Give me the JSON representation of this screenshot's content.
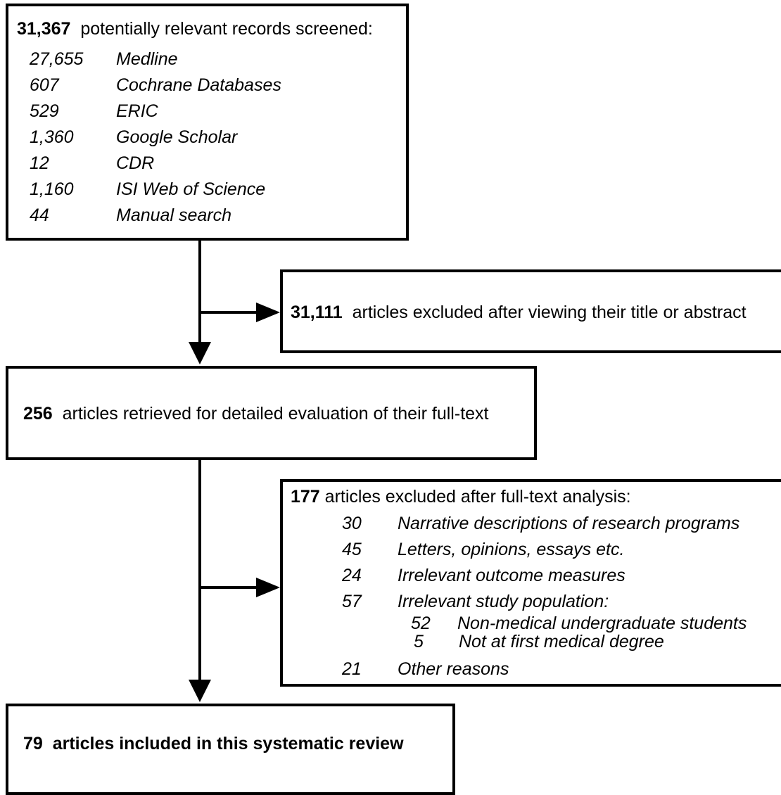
{
  "screened": {
    "count": "31,367",
    "label": "potentially relevant records screened:",
    "sources": [
      {
        "n": "27,655",
        "name": "Medline"
      },
      {
        "n": "607",
        "name": "Cochrane Databases"
      },
      {
        "n": "529",
        "name": "ERIC"
      },
      {
        "n": "1,360",
        "name": "Google Scholar"
      },
      {
        "n": "12",
        "name": "CDR"
      },
      {
        "n": "1,160",
        "name": "ISI Web of Science"
      },
      {
        "n": "44",
        "name": "Manual search"
      }
    ]
  },
  "excluded_title": {
    "count": "31,111",
    "label": "articles excluded after viewing their title or abstract"
  },
  "retrieved": {
    "count": "256",
    "label": "articles retrieved for detailed evaluation of their full-text"
  },
  "excluded_fulltext": {
    "count": "177",
    "label": "articles excluded after full-text analysis:",
    "reasons": [
      {
        "n": "30",
        "name": "Narrative descriptions of research programs"
      },
      {
        "n": "45",
        "name": "Letters, opinions, essays etc."
      },
      {
        "n": "24",
        "name": "Irrelevant outcome measures"
      },
      {
        "n": "57",
        "name": "Irrelevant study population:"
      },
      {
        "n": "21",
        "name": "Other reasons"
      }
    ],
    "subreasons": [
      {
        "n": "52",
        "name": "Non-medical undergraduate students"
      },
      {
        "n": "5",
        "name": "Not at first medical degree"
      }
    ]
  },
  "included": {
    "count": "79",
    "label": "articles included in this systematic review"
  }
}
